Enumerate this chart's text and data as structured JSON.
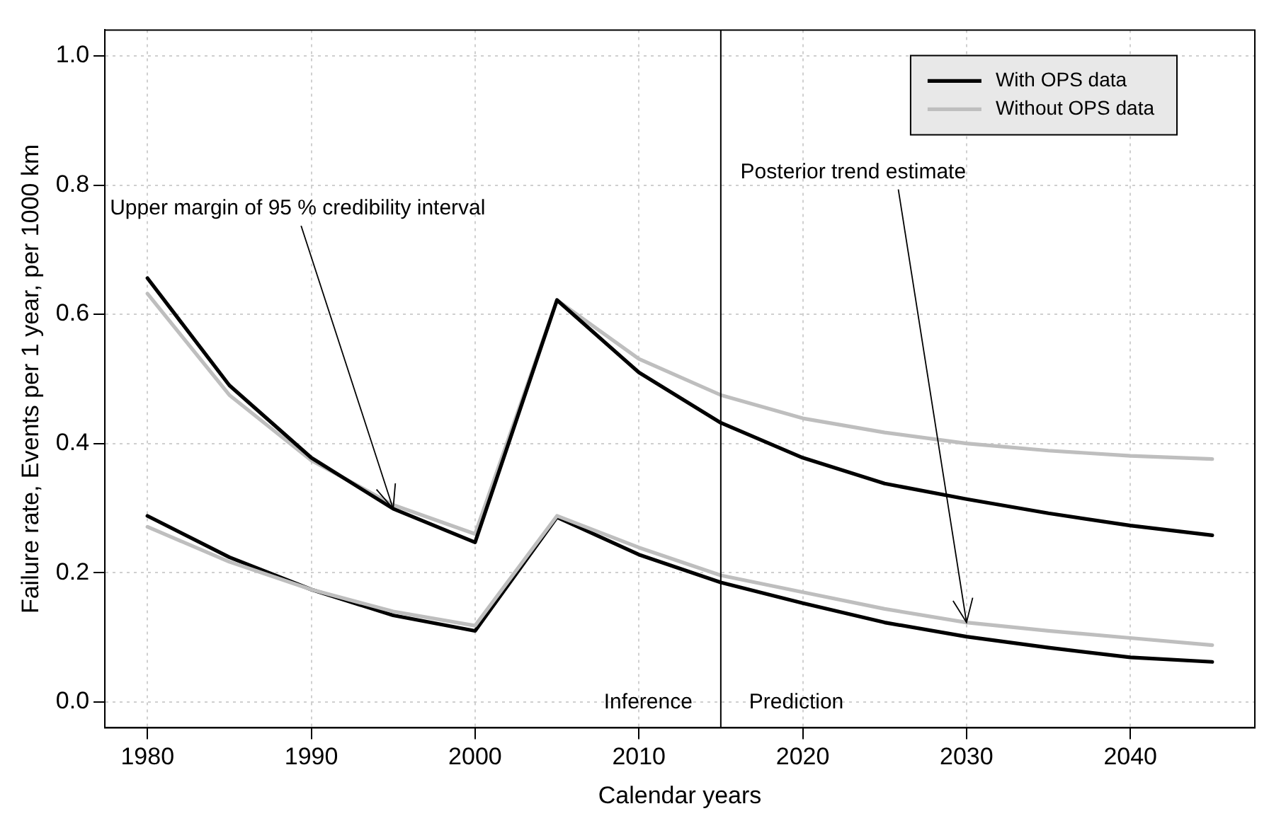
{
  "chart_data": {
    "type": "line",
    "xlabel": "Calendar years",
    "ylabel": "Failure rate, Events per 1 year, per 1000 km",
    "x": [
      1980,
      1985,
      1990,
      1995,
      2000,
      2005,
      2010,
      2015,
      2020,
      2025,
      2030,
      2035,
      2040,
      2045
    ],
    "series": [
      {
        "name": "With OPS data",
        "color": "#000000",
        "values": [
          0.656,
          0.49,
          0.378,
          0.299,
          0.247,
          0.622,
          0.51,
          0.432,
          0.378,
          0.338,
          0.314,
          0.292,
          0.273,
          0.258
        ]
      },
      {
        "name": "Without OPS data",
        "color": "#bebebe",
        "values": [
          0.632,
          0.475,
          0.374,
          0.305,
          0.26,
          0.622,
          0.531,
          0.475,
          0.439,
          0.417,
          0.4,
          0.389,
          0.381,
          0.376
        ]
      },
      {
        "color": "#bebebe",
        "values": [
          0.271,
          0.217,
          0.174,
          0.14,
          0.118,
          0.288,
          0.239,
          0.196,
          0.17,
          0.144,
          0.123,
          0.11,
          0.099,
          0.088
        ]
      },
      {
        "color": "#000000",
        "values": [
          0.288,
          0.224,
          0.174,
          0.134,
          0.11,
          0.286,
          0.228,
          0.185,
          0.153,
          0.123,
          0.101,
          0.084,
          0.069,
          0.062
        ]
      }
    ],
    "xlim": [
      1977.4,
      2047.6
    ],
    "ylim": [
      -0.04,
      1.04
    ],
    "xticks": [
      1980,
      1990,
      2000,
      2010,
      2020,
      2030,
      2040
    ],
    "yticks": [
      {
        "value": 0,
        "label": "0.0"
      },
      {
        "value": 0.2,
        "label": "0.2"
      },
      {
        "value": 0.4,
        "label": "0.4"
      },
      {
        "value": 0.6,
        "label": "0.6"
      },
      {
        "value": 0.8,
        "label": "0.8"
      },
      {
        "value": 1,
        "label": "1.0"
      }
    ],
    "ref_lines": [
      {
        "axis": "x",
        "value": 2015,
        "color": "#000000"
      }
    ],
    "annotations": [
      {
        "text": "Upper margin of 95 % credibility interval",
        "x": 1995,
        "y": 0.299
      },
      {
        "text": "Posterior trend estimate",
        "x": 2030,
        "y": 0.123
      },
      "Inference",
      "Prediction"
    ],
    "grid": true,
    "legend": "top right",
    "marker": "none",
    "line_style": "solid"
  }
}
